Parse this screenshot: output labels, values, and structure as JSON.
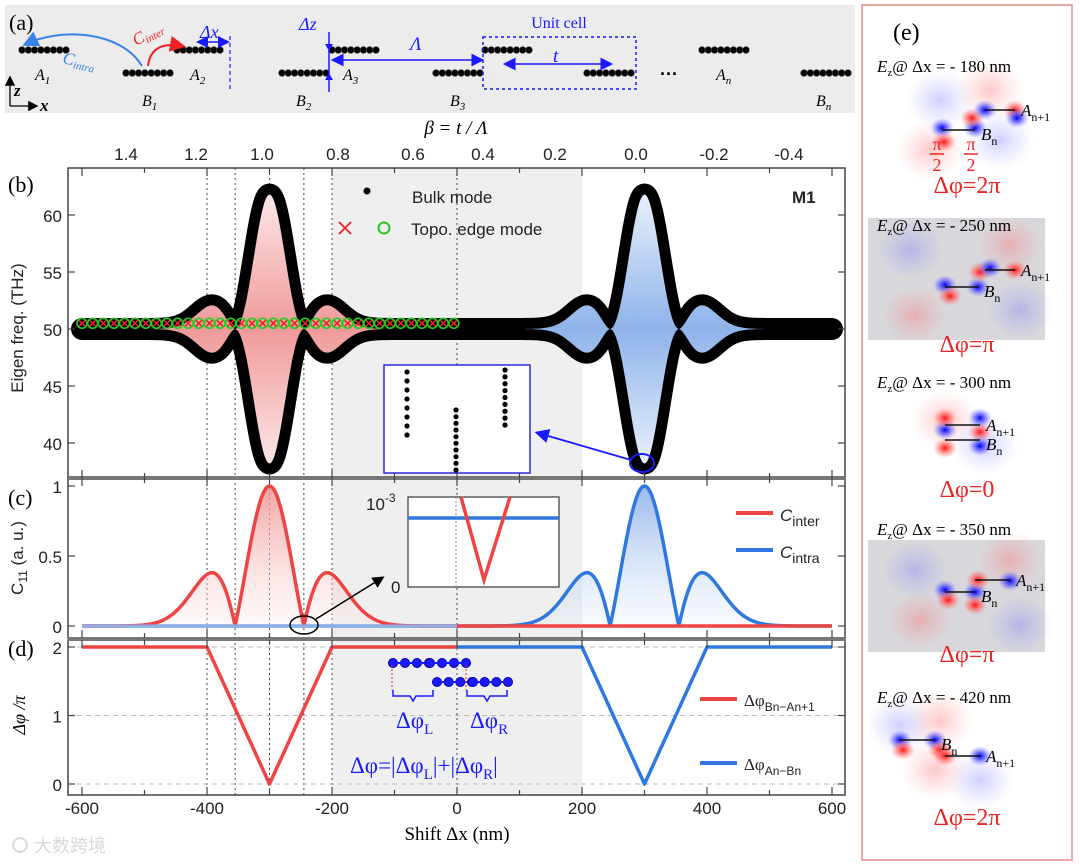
{
  "panel_labels": {
    "a": "(a)",
    "b": "(b)",
    "c": "(c)",
    "d": "(d)",
    "e": "(e)"
  },
  "panel_a": {
    "sites": {
      "A1": {
        "main": "A",
        "sub": "1"
      },
      "A2": {
        "main": "A",
        "sub": "2"
      },
      "A3": {
        "main": "A",
        "sub": "3"
      },
      "An": {
        "main": "A",
        "sub": "n"
      },
      "B1": {
        "main": "B",
        "sub": "1"
      },
      "B2": {
        "main": "B",
        "sub": "2"
      },
      "B3": {
        "main": "B",
        "sub": "3"
      },
      "Bn": {
        "main": "B",
        "sub": "n"
      }
    },
    "c_intra": {
      "main": "C",
      "sub": "intra"
    },
    "c_inter": {
      "main": "C",
      "sub": "inter"
    },
    "dx": "Δx",
    "dz": "Δz",
    "lambda": "Λ",
    "t": "t",
    "unit_cell": "Unit cell",
    "ellipsis": "···",
    "axis_z": "z",
    "axis_x": "x",
    "colors": {
      "intra": "#3b82e6",
      "inter": "#ee2222",
      "annot": "#1a1aff"
    }
  },
  "chart_data": [
    {
      "id": "b",
      "type": "scatter",
      "xlabel": "Shift Δx (nm)",
      "ylabel": "Eigen freq. (THz)",
      "top_axis_label": "β = t / Λ",
      "top_ticks": [
        "1.4",
        "1.2",
        "1.0",
        "0.8",
        "0.6",
        "0.4",
        "0.2",
        "0.0",
        "-0.2",
        "-0.4"
      ],
      "xlim": [
        -600,
        600
      ],
      "ylim": [
        37,
        64
      ],
      "yticks": [
        "40",
        "45",
        "50",
        "55",
        "60"
      ],
      "band_center": 50,
      "band_extrema": [
        {
          "x": -300,
          "upper": 62.8,
          "lower": 38.5
        },
        {
          "x": 300,
          "upper": 62.8,
          "lower": 38.5
        }
      ],
      "edge_mode": {
        "x_start": -600,
        "x_end": 0,
        "step": 17,
        "freq": 50.5
      },
      "legend": [
        {
          "marker": "dot",
          "label": "Bulk mode"
        },
        {
          "marker": "cross+circle",
          "label": "Topo. edge mode"
        }
      ],
      "legend_position": "top-center",
      "annotation": "M1",
      "shaded_x": [
        -200,
        200
      ],
      "reference_lines_x": [
        -400,
        -355,
        -300,
        -245,
        -200,
        0
      ],
      "colors": {
        "bulk": "#000000",
        "edge_cross": "#ee2222",
        "edge_circle": "#22cc22",
        "fill_left": "#f2a0a0",
        "fill_right": "#90b4ea"
      }
    },
    {
      "id": "c",
      "type": "line",
      "ylabel": {
        "main": "C",
        "sub": "11",
        "rest": " (a. u.)"
      },
      "xlim": [
        -600,
        600
      ],
      "ylim": [
        0,
        1
      ],
      "yticks": [
        "0",
        "0.5",
        "1"
      ],
      "series": [
        {
          "name": {
            "main": "C",
            "sub": "inter"
          },
          "color": "#ee4444",
          "main_peak": {
            "x": -300,
            "y": 1.0
          },
          "zeros": [
            -355,
            -245
          ],
          "side_peaks": [
            {
              "x": -390,
              "y": 0.38
            },
            {
              "x": -210,
              "y": 0.38
            }
          ],
          "support": [
            -600,
            0
          ]
        },
        {
          "name": {
            "main": "C",
            "sub": "intra"
          },
          "color": "#2f78e0",
          "main_peak": {
            "x": 300,
            "y": 1.0
          },
          "zeros": [
            245,
            355
          ],
          "side_peaks": [
            {
              "x": 210,
              "y": 0.38
            },
            {
              "x": 390,
              "y": 0.38
            }
          ],
          "support": [
            0,
            600
          ]
        }
      ],
      "inset": {
        "ytop": "10",
        "ytop_exp": "-3",
        "ybottom": "0"
      }
    },
    {
      "id": "d",
      "type": "line",
      "ylabel": "Δφ /π",
      "xlabel": "Shift Δx (nm)",
      "xticks": [
        "-600",
        "-400",
        "-200",
        "0",
        "200",
        "400",
        "600"
      ],
      "xlim": [
        -600,
        600
      ],
      "ylim": [
        0,
        2
      ],
      "yticks": [
        "0",
        "1",
        "2"
      ],
      "series": [
        {
          "name": {
            "main": "Δφ",
            "sub": "Bn−An+1"
          },
          "color": "#ee4444",
          "points": [
            [
              -600,
              2
            ],
            [
              -400,
              2
            ],
            [
              -300,
              0
            ],
            [
              -200,
              2
            ],
            [
              0,
              2
            ]
          ]
        },
        {
          "name": {
            "main": "Δφ",
            "sub": "An−Bn"
          },
          "color": "#2f78e0",
          "points": [
            [
              0,
              2
            ],
            [
              200,
              2
            ],
            [
              300,
              0
            ],
            [
              400,
              2
            ],
            [
              600,
              2
            ]
          ]
        }
      ],
      "annotation": {
        "phi_L": {
          "main": "Δφ",
          "sub": "L"
        },
        "phi_R": {
          "main": "Δφ",
          "sub": "R"
        },
        "formula": {
          "a": "Δφ=|Δφ",
          "sub1": "L",
          "b": "|+|Δφ",
          "sub2": "R",
          "c": "|"
        }
      }
    }
  ],
  "panel_e": {
    "items": [
      {
        "label_main": "E",
        "label_sub": "z",
        "label_rest": "@ Δx = - 180 nm",
        "site_a": "A",
        "site_a_sub": "n+1",
        "site_b": "B",
        "site_b_sub": "n",
        "phase": "Δφ=2π",
        "half_pi": {
          "num": "π",
          "den": "2"
        }
      },
      {
        "label_main": "E",
        "label_sub": "z",
        "label_rest": "@ Δx = - 250 nm",
        "site_a": "A",
        "site_a_sub": "n+1",
        "site_b": "B",
        "site_b_sub": "n",
        "phase": "Δφ=π"
      },
      {
        "label_main": "E",
        "label_sub": "z",
        "label_rest": "@ Δx = - 300 nm",
        "site_a": "A",
        "site_a_sub": "n+1",
        "site_b": "B",
        "site_b_sub": "n",
        "phase": "Δφ=0"
      },
      {
        "label_main": "E",
        "label_sub": "z",
        "label_rest": "@ Δx = - 350 nm",
        "site_a": "A",
        "site_a_sub": "n+1",
        "site_b": "B",
        "site_b_sub": "n",
        "phase": "Δφ=π"
      },
      {
        "label_main": "E",
        "label_sub": "z",
        "label_rest": "@ Δx = - 420 nm",
        "site_a": "A",
        "site_a_sub": "n+1",
        "site_b": "B",
        "site_b_sub": "n",
        "phase": "Δφ=2π"
      }
    ]
  },
  "watermark": "大数跨境"
}
